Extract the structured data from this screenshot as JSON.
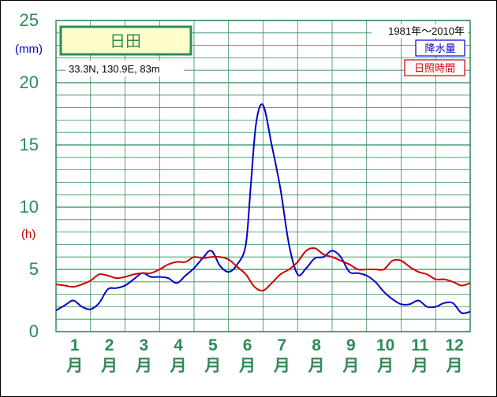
{
  "chart_data": {
    "type": "line",
    "station_name": "日田",
    "location": "33.3N,  130.9E,  83m",
    "period": "1981年～2010年",
    "y_unit_precip": "(mm)",
    "y_unit_sun": "(h)",
    "ylim": [
      0,
      25
    ],
    "yticks": [
      "0",
      "5",
      "10",
      "15",
      "20",
      "25"
    ],
    "months": [
      "1",
      "2",
      "3",
      "4",
      "5",
      "6",
      "7",
      "8",
      "9",
      "10",
      "11",
      "12"
    ],
    "month_suffix": "月",
    "grid": true,
    "legend_position": "top-right",
    "series": [
      {
        "name": "降水量",
        "color": "#0000cc",
        "x": [
          0.5,
          0.75,
          1.0,
          1.25,
          1.5,
          1.75,
          2.0,
          2.25,
          2.5,
          2.75,
          3.0,
          3.25,
          3.5,
          3.75,
          4.0,
          4.25,
          4.5,
          4.75,
          5.0,
          5.25,
          5.5,
          5.75,
          6.0,
          6.15,
          6.3,
          6.5,
          6.75,
          7.0,
          7.25,
          7.5,
          7.75,
          8.0,
          8.25,
          8.5,
          8.75,
          9.0,
          9.25,
          9.5,
          9.75,
          10.0,
          10.25,
          10.5,
          10.75,
          11.0,
          11.25,
          11.5,
          11.75,
          12.0,
          12.25,
          12.5
        ],
        "values": [
          1.7,
          2.1,
          2.5,
          2.0,
          1.8,
          2.3,
          3.4,
          3.5,
          3.7,
          4.2,
          4.7,
          4.4,
          4.4,
          4.3,
          3.9,
          4.5,
          5.1,
          5.9,
          6.5,
          5.3,
          4.8,
          5.4,
          7.0,
          12.0,
          16.8,
          18.2,
          15.0,
          11.5,
          7.0,
          4.6,
          5.1,
          5.9,
          6.0,
          6.5,
          6.0,
          4.8,
          4.7,
          4.5,
          4.0,
          3.2,
          2.6,
          2.2,
          2.2,
          2.5,
          2.0,
          2.0,
          2.3,
          2.3,
          1.5,
          1.6
        ]
      },
      {
        "name": "日照時間",
        "color": "#cc0000",
        "x": [
          0.5,
          0.75,
          1.0,
          1.25,
          1.5,
          1.75,
          2.0,
          2.25,
          2.5,
          2.75,
          3.0,
          3.25,
          3.5,
          3.75,
          4.0,
          4.25,
          4.5,
          4.75,
          5.0,
          5.25,
          5.5,
          5.75,
          6.0,
          6.25,
          6.5,
          6.75,
          7.0,
          7.25,
          7.5,
          7.75,
          8.0,
          8.25,
          8.5,
          8.75,
          9.0,
          9.25,
          9.5,
          9.75,
          10.0,
          10.25,
          10.5,
          10.75,
          11.0,
          11.25,
          11.5,
          11.75,
          12.0,
          12.25,
          12.5
        ],
        "values": [
          3.8,
          3.7,
          3.6,
          3.8,
          4.1,
          4.6,
          4.5,
          4.3,
          4.4,
          4.6,
          4.7,
          4.7,
          5.0,
          5.4,
          5.6,
          5.6,
          6.0,
          5.9,
          6.0,
          6.0,
          5.8,
          5.2,
          4.6,
          3.6,
          3.3,
          3.9,
          4.6,
          5.0,
          5.6,
          6.5,
          6.7,
          6.2,
          6.0,
          5.7,
          5.4,
          5.0,
          5.0,
          5.0,
          5.0,
          5.7,
          5.7,
          5.2,
          4.8,
          4.6,
          4.2,
          4.2,
          4.0,
          3.7,
          3.9
        ]
      }
    ]
  },
  "colors": {
    "grid": "#2e8b57",
    "station_fill": "#ffffcc",
    "tick_text": "#2e8b57"
  }
}
